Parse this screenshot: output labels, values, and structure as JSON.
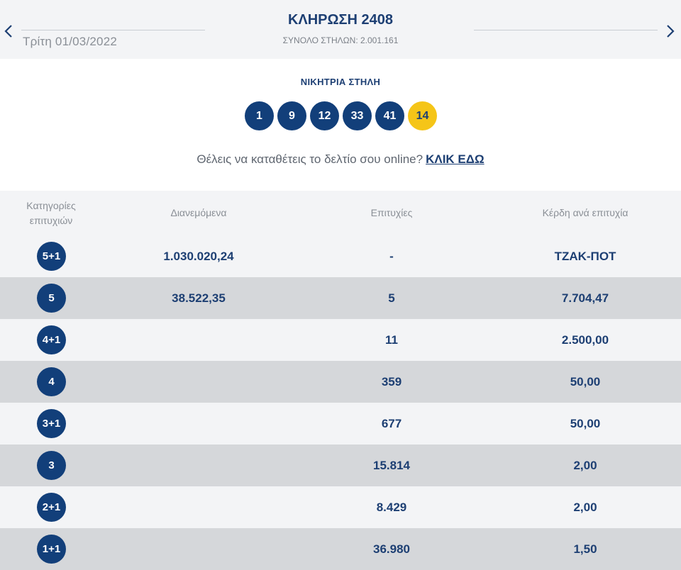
{
  "header": {
    "draw_title": "ΚΛΗΡΩΣΗ 2408",
    "total_columns": "ΣΥΝΟΛΟ ΣΤΗΛΩΝ: 2.001.161",
    "date": "Τρίτη 01/03/2022",
    "prev_icon": "chevron-left-icon",
    "next_icon": "chevron-right-icon"
  },
  "winning": {
    "label": "ΝΙΚΗΤΡΙΑ ΣΤΗΛΗ",
    "numbers": [
      "1",
      "9",
      "12",
      "33",
      "41"
    ],
    "bonus": "14"
  },
  "promo": {
    "text": "Θέλεις να καταθέτεις το δελτίο σου online?",
    "link": "ΚΛΙΚ ΕΔΩ"
  },
  "table": {
    "headers": {
      "category_line1": "Κατηγορίες",
      "category_line2": "επιτυχιών",
      "distributed": "Διανεμόμενα",
      "wins": "Επιτυχίες",
      "prize": "Κέρδη ανά επιτυχία"
    },
    "rows": [
      {
        "category": "5+1",
        "distributed": "1.030.020,24",
        "wins": "-",
        "prize": "ΤΖΑΚ-ΠΟΤ"
      },
      {
        "category": "5",
        "distributed": "38.522,35",
        "wins": "5",
        "prize": "7.704,47"
      },
      {
        "category": "4+1",
        "distributed": "",
        "wins": "11",
        "prize": "2.500,00"
      },
      {
        "category": "4",
        "distributed": "",
        "wins": "359",
        "prize": "50,00"
      },
      {
        "category": "3+1",
        "distributed": "",
        "wins": "677",
        "prize": "50,00"
      },
      {
        "category": "3",
        "distributed": "",
        "wins": "15.814",
        "prize": "2,00"
      },
      {
        "category": "2+1",
        "distributed": "",
        "wins": "8.429",
        "prize": "2,00"
      },
      {
        "category": "1+1",
        "distributed": "",
        "wins": "36.980",
        "prize": "1,50"
      }
    ]
  },
  "colors": {
    "navy": "#123f7a",
    "text_navy": "#1d3f73",
    "bonus_yellow": "#f5c518",
    "row_light": "#f3f4f6",
    "row_dark": "#d5d7da"
  }
}
